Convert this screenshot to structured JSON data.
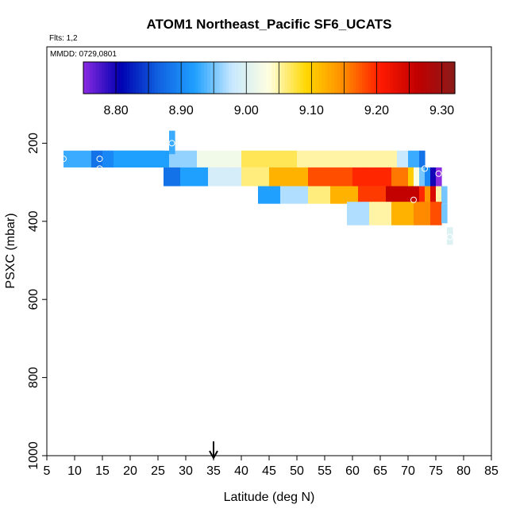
{
  "chart_data": {
    "type": "heatmap",
    "title": "ATOM1 Northeast_Pacific SF6_UCATS",
    "flights_label": "Flts: 1,2",
    "date_label": "MMDD: 0729,0801",
    "xlabel": "Latitude (deg N)",
    "ylabel": "PSXC (mbar)",
    "xlim": [
      5,
      85
    ],
    "ylim": [
      1000,
      0
    ],
    "xticks": [
      "5",
      "10",
      "15",
      "20",
      "25",
      "30",
      "35",
      "40",
      "45",
      "50",
      "55",
      "60",
      "65",
      "70",
      "75",
      "80",
      "85"
    ],
    "yticks": [
      {
        "value": 200,
        "label": "200"
      },
      {
        "value": 400,
        "label": "400"
      },
      {
        "value": 600,
        "label": "600"
      },
      {
        "value": 800,
        "label": "800"
      },
      {
        "value": 1000,
        "label": "1000"
      }
    ],
    "arrow_latitude": 35,
    "colorbar": {
      "min": 8.75,
      "max": 9.32,
      "tick_values": [
        8.8,
        8.9,
        9.0,
        9.1,
        9.2,
        9.3
      ],
      "tick_labels": [
        "8.80",
        "8.90",
        "9.00",
        "9.10",
        "9.20",
        "9.30"
      ],
      "colors": [
        "#8a2be2",
        "#0000b0",
        "#1060e0",
        "#1fa0ff",
        "#c8e8ff",
        "#ffffe0",
        "#ffd700",
        "#ff8c00",
        "#ff1a00",
        "#c00000",
        "#8b1a1a"
      ]
    },
    "rows": [
      {
        "p_top": 219,
        "p_bot": 262,
        "cells": [
          [
            8,
            26,
            8.93
          ],
          [
            13,
            15,
            8.88
          ],
          [
            15,
            17,
            8.9
          ],
          [
            17,
            27,
            8.92
          ],
          [
            27,
            32,
            8.96
          ],
          [
            32,
            40,
            9.02
          ],
          [
            40,
            50,
            9.07
          ],
          [
            50,
            68,
            9.05
          ],
          [
            68,
            70,
            8.98
          ],
          [
            70,
            72,
            8.93
          ],
          [
            72,
            73,
            8.88
          ]
        ]
      },
      {
        "p_top": 262,
        "p_bot": 310,
        "cells": [
          [
            26,
            29,
            8.88
          ],
          [
            29,
            34,
            8.92
          ],
          [
            34,
            40,
            8.99
          ],
          [
            40,
            45,
            9.06
          ],
          [
            45,
            52,
            9.12
          ],
          [
            52,
            60,
            9.18
          ],
          [
            60,
            67,
            9.2
          ],
          [
            67,
            70,
            9.16
          ],
          [
            70,
            71,
            9.1
          ],
          [
            71,
            72,
            9.03
          ],
          [
            72,
            73,
            8.95
          ],
          [
            73,
            74,
            8.9
          ],
          [
            74,
            75,
            8.8
          ],
          [
            75,
            76,
            8.75
          ]
        ]
      },
      {
        "p_top": 310,
        "p_bot": 355,
        "cells": [
          [
            43,
            47,
            8.92
          ],
          [
            47,
            52,
            8.97
          ],
          [
            52,
            56,
            9.06
          ],
          [
            56,
            61,
            9.12
          ],
          [
            61,
            66,
            9.19
          ],
          [
            66,
            72,
            9.26
          ],
          [
            72,
            73,
            9.2
          ],
          [
            73,
            74,
            9.14
          ],
          [
            74,
            75,
            9.24
          ],
          [
            75,
            76,
            9.05
          ],
          [
            76,
            77,
            8.95
          ]
        ]
      },
      {
        "p_top": 350,
        "p_bot": 410,
        "cells": [
          [
            59,
            63,
            8.97
          ],
          [
            63,
            67,
            9.05
          ],
          [
            67,
            71,
            9.12
          ],
          [
            71,
            74,
            9.15
          ],
          [
            74,
            76,
            9.18
          ]
        ]
      },
      {
        "p_top": 168,
        "p_bot": 228,
        "cells": [
          [
            27,
            28,
            8.93
          ]
        ]
      },
      {
        "p_top": 355,
        "p_bot": 405,
        "cells": [
          [
            76,
            77,
            8.95
          ]
        ]
      },
      {
        "p_top": 415,
        "p_bot": 460,
        "cells": [
          [
            77,
            78,
            9.0
          ]
        ]
      }
    ],
    "circles": [
      {
        "lat": 8,
        "p": 240
      },
      {
        "lat": 14.5,
        "p": 240
      },
      {
        "lat": 14.5,
        "p": 265
      },
      {
        "lat": 27.5,
        "p": 200
      },
      {
        "lat": 73,
        "p": 265
      },
      {
        "lat": 75.5,
        "p": 278
      },
      {
        "lat": 71,
        "p": 345
      },
      {
        "lat": 77.5,
        "p": 440
      }
    ]
  }
}
